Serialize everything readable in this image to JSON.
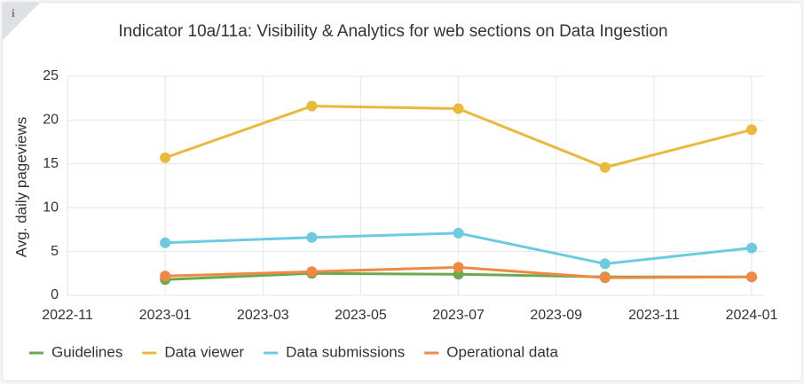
{
  "info_icon": "i",
  "chart_data": {
    "type": "line",
    "title": "Indicator 10a/11a: Visibility & Analytics for web sections on Data Ingestion",
    "y_label": "Avg. daily pageviews",
    "x": [
      "2023-01",
      "2023-04",
      "2023-07",
      "2023-10",
      "2024-01"
    ],
    "xlim": [
      "2022-11",
      "2024-01"
    ],
    "xticks": [
      "2022-11",
      "2023-01",
      "2023-03",
      "2023-05",
      "2023-07",
      "2023-09",
      "2023-11",
      "2024-01"
    ],
    "ylim": [
      0,
      25
    ],
    "yticks": [
      0,
      5,
      10,
      15,
      20,
      25
    ],
    "grid": true,
    "legend": "bottom",
    "series": [
      {
        "name": "Guidelines",
        "color": "#6aaa4f",
        "values": [
          1.8,
          2.5,
          2.4,
          2.1,
          2.1
        ]
      },
      {
        "name": "Data viewer",
        "color": "#e9b93c",
        "values": [
          15.7,
          21.6,
          21.3,
          14.6,
          18.9
        ]
      },
      {
        "name": "Data submissions",
        "color": "#6ccbe1",
        "values": [
          6.0,
          6.6,
          7.1,
          3.6,
          5.4
        ]
      },
      {
        "name": "Operational data",
        "color": "#ee8a43",
        "values": [
          2.2,
          2.7,
          3.2,
          2.0,
          2.1
        ]
      }
    ]
  }
}
